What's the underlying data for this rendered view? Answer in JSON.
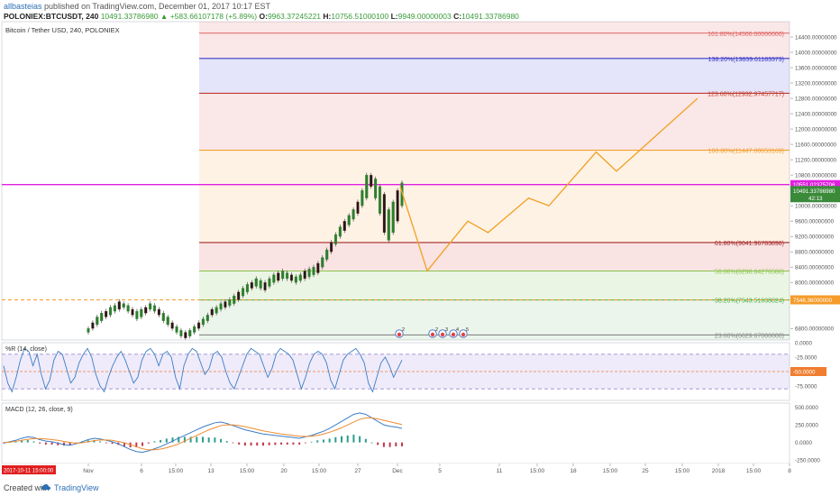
{
  "header": {
    "user": "allbasteias",
    "published": "published on TradingView.com, December 01, 2017 10:17 EST",
    "symbol": "POLONIEX:BTCUSDT, 240",
    "last": "10491.33786980",
    "change": "+583.66107178 (+5.89%)",
    "open_label": "O:",
    "open": "9963.37245221",
    "high_label": "H:",
    "high": "10756.51000100",
    "low_label": "L:",
    "low": "9949.00000003",
    "close_label": "C:",
    "close": "10491.33786980"
  },
  "chart_data": {
    "type": "line",
    "title": "Bitcoin / Tether USD, 240, POLONIEX",
    "price_axis": {
      "ylim": [
        6500,
        14800
      ],
      "ticks": [
        {
          "v": 14400,
          "label": "14400.00000000"
        },
        {
          "v": 14000,
          "label": "14000.00000000"
        },
        {
          "v": 13600,
          "label": "13600.00000000"
        },
        {
          "v": 13200,
          "label": "13200.00000000"
        },
        {
          "v": 12800,
          "label": "12800.00000000"
        },
        {
          "v": 12400,
          "label": "12400.00000000"
        },
        {
          "v": 12000,
          "label": "12000.00000000"
        },
        {
          "v": 11600,
          "label": "11600.00000000"
        },
        {
          "v": 11200,
          "label": "11200.00000000"
        },
        {
          "v": 10800,
          "label": "10800.00000000"
        },
        {
          "v": 10000,
          "label": "10000.00000000"
        },
        {
          "v": 9600,
          "label": "9600.00000000"
        },
        {
          "v": 9200,
          "label": "9200.00000000"
        },
        {
          "v": 8800,
          "label": "8800.00000000"
        },
        {
          "v": 8400,
          "label": "8400.00000000"
        },
        {
          "v": 8000,
          "label": "8000.00000000"
        },
        {
          "v": 7600,
          "label": "7600.00000000"
        },
        {
          "v": 6800,
          "label": "6800.00000000"
        }
      ]
    },
    "fib_levels": [
      {
        "label": "161.80%(14500.00000000)",
        "v": 14500,
        "color": "#e06666"
      },
      {
        "label": "138.20%(13839.61183373)",
        "v": 13839.61,
        "color": "#3b3bc8"
      },
      {
        "label": "123.60%(12932.97457717)",
        "v": 12932.97,
        "color": "#c0392b"
      },
      {
        "label": "100.00%(11447.00653169)",
        "v": 11447.01,
        "color": "#f0a030"
      },
      {
        "label": "61.80%(9041.96783898)",
        "v": 9041.97,
        "color": "#a52a2a"
      },
      {
        "label": "50.00%(8298.84276586)",
        "v": 8298.84,
        "color": "#8bc34a"
      },
      {
        "label": "38.20%(7543.51638824)",
        "v": 7543.52,
        "color": "#4caf50"
      },
      {
        "label": "23.60%(6629.67000000)",
        "v": 6629.67,
        "color": "#888888"
      }
    ],
    "fib_bands": [
      {
        "from": 14800,
        "to": 13839.61,
        "color": "rgba(230,120,120,0.18)"
      },
      {
        "from": 13839.61,
        "to": 12932.97,
        "color": "rgba(120,120,230,0.20)"
      },
      {
        "from": 12932.97,
        "to": 11447.01,
        "color": "rgba(230,120,120,0.18)"
      },
      {
        "from": 11447.01,
        "to": 9041.97,
        "color": "rgba(245,170,80,0.15)"
      },
      {
        "from": 9041.97,
        "to": 8298.84,
        "color": "rgba(220,100,100,0.18)"
      },
      {
        "from": 8298.84,
        "to": 7543.52,
        "color": "rgba(140,200,100,0.18)"
      },
      {
        "from": 7543.52,
        "to": 6500,
        "color": "rgba(120,190,120,0.15)"
      }
    ],
    "horizontal_lines": [
      {
        "v": 10551.02,
        "label": "10551.02375706",
        "color": "#e020e0"
      },
      {
        "v": 7546.36,
        "label": "7546.36000000",
        "color": "#f59b2a"
      }
    ],
    "last_price_label": "10491.33786980",
    "countdown_label": "42:13",
    "price_candles": [
      [
        6700,
        6800
      ],
      [
        6800,
        6950
      ],
      [
        6900,
        7100
      ],
      [
        7000,
        7200
      ],
      [
        7100,
        7250
      ],
      [
        7150,
        7350
      ],
      [
        7250,
        7400
      ],
      [
        7300,
        7500
      ],
      [
        7350,
        7450
      ],
      [
        7250,
        7400
      ],
      [
        7150,
        7300
      ],
      [
        7050,
        7250
      ],
      [
        7100,
        7300
      ],
      [
        7200,
        7350
      ],
      [
        7300,
        7450
      ],
      [
        7250,
        7400
      ],
      [
        7150,
        7300
      ],
      [
        7000,
        7200
      ],
      [
        6900,
        7100
      ],
      [
        6800,
        6950
      ],
      [
        6700,
        6850
      ],
      [
        6600,
        6750
      ],
      [
        6550,
        6700
      ],
      [
        6600,
        6750
      ],
      [
        6700,
        6850
      ],
      [
        6800,
        6950
      ],
      [
        6900,
        7050
      ],
      [
        7000,
        7150
      ],
      [
        7150,
        7300
      ],
      [
        7200,
        7350
      ],
      [
        7300,
        7450
      ],
      [
        7350,
        7500
      ],
      [
        7400,
        7550
      ],
      [
        7450,
        7650
      ],
      [
        7550,
        7750
      ],
      [
        7650,
        7850
      ],
      [
        7750,
        7950
      ],
      [
        7850,
        8000
      ],
      [
        7900,
        8100
      ],
      [
        7850,
        8050
      ],
      [
        7800,
        8000
      ],
      [
        7900,
        8100
      ],
      [
        8000,
        8200
      ],
      [
        8050,
        8250
      ],
      [
        8100,
        8300
      ],
      [
        8100,
        8250
      ],
      [
        8050,
        8200
      ],
      [
        8000,
        8150
      ],
      [
        8050,
        8200
      ],
      [
        8100,
        8300
      ],
      [
        8150,
        8350
      ],
      [
        8200,
        8400
      ],
      [
        8250,
        8500
      ],
      [
        8400,
        8650
      ],
      [
        8600,
        8850
      ],
      [
        8800,
        9050
      ],
      [
        9000,
        9250
      ],
      [
        9200,
        9450
      ],
      [
        9350,
        9600
      ],
      [
        9500,
        9750
      ],
      [
        9650,
        9900
      ],
      [
        9800,
        10100
      ],
      [
        10000,
        10400
      ],
      [
        10200,
        10800
      ],
      [
        10500,
        10800
      ],
      [
        10200,
        10700
      ],
      [
        9800,
        10500
      ],
      [
        9300,
        10300
      ],
      [
        9100,
        9900
      ],
      [
        9300,
        10100
      ],
      [
        9600,
        10400
      ],
      [
        10000,
        10600
      ]
    ],
    "projection_path": [
      {
        "d": 0,
        "v": 10500
      },
      {
        "d": 4,
        "v": 8300
      },
      {
        "d": 10,
        "v": 9600
      },
      {
        "d": 13,
        "v": 9300
      },
      {
        "d": 19,
        "v": 10200
      },
      {
        "d": 22,
        "v": 10000
      },
      {
        "d": 29,
        "v": 11400
      },
      {
        "d": 32,
        "v": 10900
      },
      {
        "d": 44,
        "v": 12800
      }
    ],
    "event_markers": [
      "2",
      "2",
      "3",
      "4",
      "5"
    ],
    "x_ticks": [
      "Nov",
      "6",
      "15:00",
      "13",
      "15:00",
      "20",
      "15:00",
      "27",
      "Dec",
      "5",
      "11",
      "15:00",
      "18",
      "15:00",
      "25",
      "15:00",
      "2018",
      "15:00",
      "8"
    ],
    "x_highlight_label": "2017-10-11 15:00:00",
    "wpr": {
      "label": "%R (14, close)",
      "ylim": [
        -100,
        0
      ],
      "ticks": [
        {
          "v": 0,
          "label": "0.0000"
        },
        {
          "v": -25,
          "label": "-25.0000"
        },
        {
          "v": -75,
          "label": "-75.0000"
        }
      ],
      "overbought": -20,
      "oversold": -80,
      "mid": -50,
      "values": [
        -40,
        -70,
        -85,
        -60,
        -30,
        -10,
        -15,
        -40,
        -20,
        -55,
        -80,
        -65,
        -30,
        -15,
        -20,
        -45,
        -70,
        -60,
        -35,
        -20,
        -10,
        -25,
        -55,
        -75,
        -85,
        -60,
        -40,
        -25,
        -15,
        -30,
        -50,
        -70,
        -60,
        -30,
        -15,
        -10,
        -20,
        -40,
        -20,
        -15,
        -25,
        -60,
        -80,
        -40,
        -20,
        -10,
        -15,
        -35,
        -55,
        -45,
        -20,
        -15,
        -25,
        -50,
        -70,
        -80,
        -60,
        -40,
        -20,
        -10,
        -15,
        -20,
        -40,
        -60,
        -45,
        -20,
        -10,
        -15,
        -20,
        -30,
        -55,
        -80,
        -60,
        -35,
        -20,
        -15,
        -20,
        -35,
        -65,
        -80,
        -55,
        -30,
        -20,
        -15,
        -10,
        -20,
        -35,
        -70,
        -85,
        -60,
        -35,
        -25,
        -40,
        -60,
        -45,
        -30
      ]
    },
    "macd": {
      "label": "MACD (12, 26, close, 9)",
      "ylim": [
        -300,
        560
      ],
      "ticks": [
        {
          "v": 500,
          "label": "500.0000"
        },
        {
          "v": 250,
          "label": "250.0000"
        },
        {
          "v": 0,
          "label": "0.0000"
        },
        {
          "v": -250,
          "label": "-250.0000"
        }
      ],
      "macd_values": [
        -10,
        10,
        30,
        60,
        80,
        70,
        40,
        20,
        10,
        -10,
        -30,
        -40,
        -20,
        10,
        40,
        60,
        50,
        30,
        10,
        -20,
        -60,
        -100,
        -130,
        -140,
        -120,
        -90,
        -60,
        -20,
        20,
        60,
        100,
        140,
        180,
        220,
        250,
        280,
        290,
        270,
        240,
        210,
        180,
        160,
        140,
        120,
        110,
        100,
        90,
        80,
        70,
        60,
        80,
        100,
        130,
        160,
        200,
        250,
        300,
        350,
        400,
        420,
        400,
        350,
        300,
        250,
        230,
        220,
        200
      ],
      "signal_values": [
        0,
        5,
        15,
        30,
        45,
        55,
        55,
        50,
        40,
        30,
        15,
        0,
        -10,
        -5,
        10,
        25,
        35,
        35,
        30,
        15,
        -5,
        -30,
        -60,
        -90,
        -105,
        -105,
        -95,
        -75,
        -50,
        -20,
        20,
        60,
        100,
        140,
        180,
        210,
        240,
        250,
        250,
        240,
        225,
        205,
        185,
        165,
        150,
        135,
        120,
        110,
        100,
        90,
        85,
        90,
        100,
        120,
        145,
        175,
        210,
        250,
        290,
        330,
        350,
        350,
        335,
        315,
        295,
        275,
        255
      ]
    }
  },
  "footer": {
    "created": "Created with",
    "brand": "TradingView"
  }
}
